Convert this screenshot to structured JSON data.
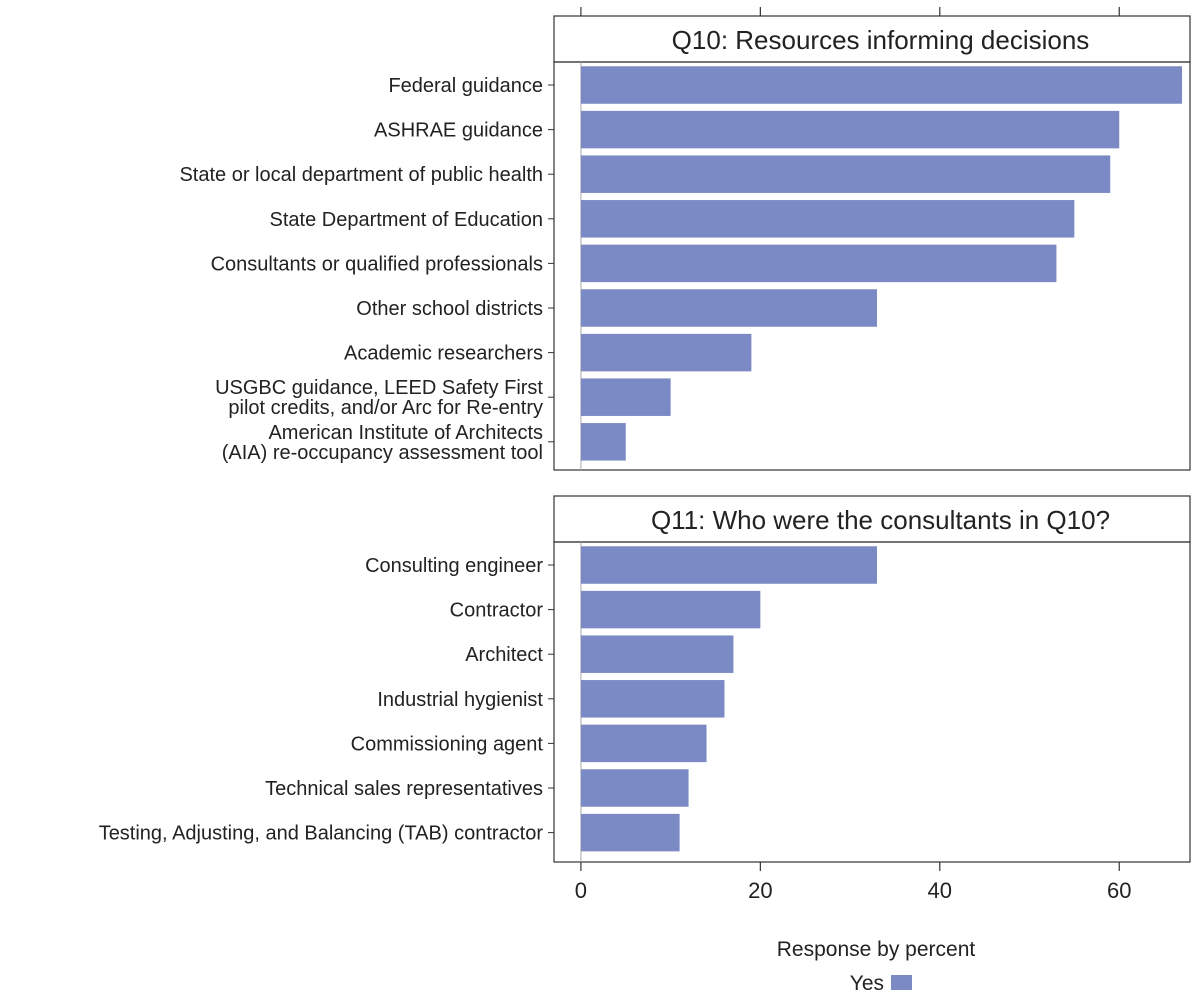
{
  "chart_data": {
    "type": "bar",
    "orientation": "horizontal",
    "xlabel": "Response by percent",
    "xlim": [
      -3,
      68
    ],
    "x_ticks": [
      0,
      20,
      40,
      60
    ],
    "x_tick_labels": [
      "0",
      "20",
      "40",
      "60"
    ],
    "grid": false,
    "bar_color": "#7b8ac4",
    "legend": {
      "placement": "bottom",
      "entries": [
        {
          "name": "Yes",
          "color": "#7b8ac4"
        }
      ]
    },
    "panels": [
      {
        "title": "Q10: Resources informing decisions",
        "categories": [
          "Federal guidance",
          "ASHRAE guidance",
          "State or local department of public health",
          "State Department of Education",
          "Consultants or qualified professionals",
          "Other school districts",
          "Academic researchers",
          "USGBC guidance, LEED Safety First\npilot credits, and/or Arc for Re-entry",
          "American Institute of Architects\n(AIA) re-occupancy assessment tool"
        ],
        "series": [
          {
            "name": "Yes",
            "values": [
              67,
              60,
              59,
              55,
              53,
              33,
              19,
              10,
              5
            ]
          }
        ]
      },
      {
        "title": "Q11: Who were the consultants in Q10?",
        "categories": [
          "Consulting engineer",
          "Contractor",
          "Architect",
          "Industrial hygienist",
          "Commissioning agent",
          "Technical sales representatives",
          "Testing, Adjusting, and Balancing (TAB) contractor"
        ],
        "series": [
          {
            "name": "Yes",
            "values": [
              33,
              20,
              17,
              16,
              14,
              12,
              11
            ]
          }
        ]
      }
    ]
  }
}
